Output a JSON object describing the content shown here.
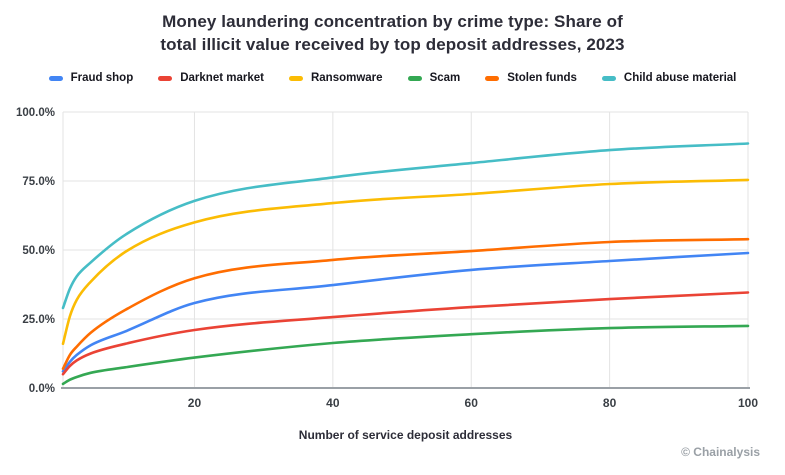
{
  "attribution": "© Chainalysis",
  "chart_data": {
    "type": "line",
    "title": "Money laundering concentration by crime type: Share of total illicit value received by top deposit addresses, 2023",
    "xlabel": "Number of service deposit addresses",
    "ylabel": "",
    "x": [
      1,
      2,
      3,
      5,
      10,
      20,
      40,
      60,
      80,
      100
    ],
    "xlim": [
      1,
      100
    ],
    "ylim": [
      0,
      100
    ],
    "grid": true,
    "legend_position": "top",
    "x_ticks": [
      20,
      40,
      60,
      80,
      100
    ],
    "y_ticks": [
      {
        "value": 0,
        "label": "0.0%"
      },
      {
        "value": 25,
        "label": "25.0%"
      },
      {
        "value": 50,
        "label": "50.0%"
      },
      {
        "value": 75,
        "label": "75.0%"
      },
      {
        "value": 100,
        "label": "100.0%"
      }
    ],
    "series": [
      {
        "name": "Fraud shop",
        "color": "#4285F4",
        "values": [
          6,
          9.5,
          12,
          15.5,
          20.5,
          30.8,
          37.3,
          42.8,
          46.0,
          48.9
        ]
      },
      {
        "name": "Darknet market",
        "color": "#EA4335",
        "values": [
          5,
          8,
          10,
          12.5,
          16,
          21,
          25.7,
          29.3,
          32.2,
          34.6
        ]
      },
      {
        "name": "Ransomware",
        "color": "#FBBC04",
        "values": [
          16,
          26,
          32,
          38.5,
          49.3,
          60,
          67,
          70.3,
          73.9,
          75.4
        ]
      },
      {
        "name": "Scam",
        "color": "#34A853",
        "values": [
          1.5,
          3,
          4,
          5.5,
          7.5,
          11,
          16.3,
          19.5,
          21.7,
          22.5
        ]
      },
      {
        "name": "Stolen funds",
        "color": "#FF6D01",
        "values": [
          7,
          12,
          15,
          20,
          28.3,
          39.8,
          46.4,
          49.6,
          52.9,
          53.9
        ]
      },
      {
        "name": "Child abuse material",
        "color": "#46BDC6",
        "values": [
          29,
          36,
          40.5,
          45.5,
          55.5,
          67.8,
          76.3,
          81.5,
          86.2,
          88.6
        ]
      }
    ],
    "colors": {
      "grid": "#e3e3e3",
      "axis_line": "#9aa0a6",
      "tick_text": "#3a3f45",
      "title_text": "#2d2d38",
      "attribution_text": "#9aa0a6"
    }
  }
}
